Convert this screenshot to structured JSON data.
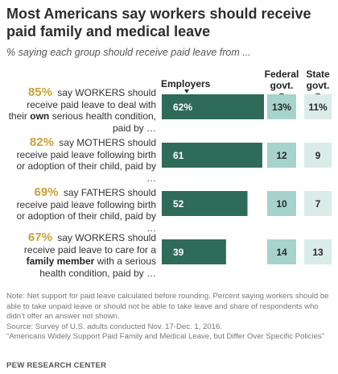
{
  "title": "Most Americans say workers should receive paid family and medical leave",
  "subtitle": "% saying each group should receive paid leave from ...",
  "colors": {
    "employers": "#2e6b59",
    "federal": "#a6d3cb",
    "state": "#d9ece8",
    "total_pct": "#c9a23a"
  },
  "rows": [
    {
      "total": "85%",
      "label_parts": [
        {
          "t": " say WORKERS should receive paid leave to deal with their ",
          "b": false
        },
        {
          "t": "own",
          "b": true
        },
        {
          "t": " serious health condition, paid by …",
          "b": false
        }
      ]
    },
    {
      "total": "82%",
      "label_parts": [
        {
          "t": " say MOTHERS should receive paid leave following birth or adoption of their child, paid by …",
          "b": false
        }
      ]
    },
    {
      "total": "69%",
      "label_parts": [
        {
          "t": " say FATHERS should receive paid leave following birth or adoption of their child, paid by …",
          "b": false
        }
      ]
    },
    {
      "total": "67%",
      "label_parts": [
        {
          "t": " say WORKERS should receive paid leave to care for a ",
          "b": false
        },
        {
          "t": "family member",
          "b": true
        },
        {
          "t": " with a serious health condition, paid by …",
          "b": false
        }
      ]
    }
  ],
  "chart_data": {
    "type": "bar",
    "categories": [
      "WORKERS own health condition",
      "MOTHERS birth or adoption",
      "FATHERS birth or adoption",
      "WORKERS care for family member"
    ],
    "series": [
      {
        "name": "Employers",
        "values": [
          62,
          61,
          52,
          39
        ],
        "labels": [
          "62%",
          "61",
          "52",
          "39"
        ]
      },
      {
        "name": "Federal govt.",
        "values": [
          13,
          12,
          10,
          14
        ],
        "labels": [
          "13%",
          "12",
          "10",
          "14"
        ]
      },
      {
        "name": "State govt.",
        "values": [
          11,
          9,
          7,
          13
        ],
        "labels": [
          "11%",
          "9",
          "7",
          "13"
        ]
      }
    ],
    "column_headers": [
      "Employers",
      "Federal govt.",
      "State govt."
    ],
    "xlim": [
      0,
      70
    ]
  },
  "note": "Note: Net support for paid leave calculated before rounding. Percent saying workers should be able to take unpaid leave or should not be able to take leave and share of respondents who didn’t offer an answer not shown.",
  "source": "Source: Survey of U.S. adults conducted Nov. 17-Dec. 1, 2016.",
  "report": "“Americans Widely Support Paid Family and Medical Leave, but Differ Over Specific Policies”",
  "brand": "PEW RESEARCH CENTER"
}
